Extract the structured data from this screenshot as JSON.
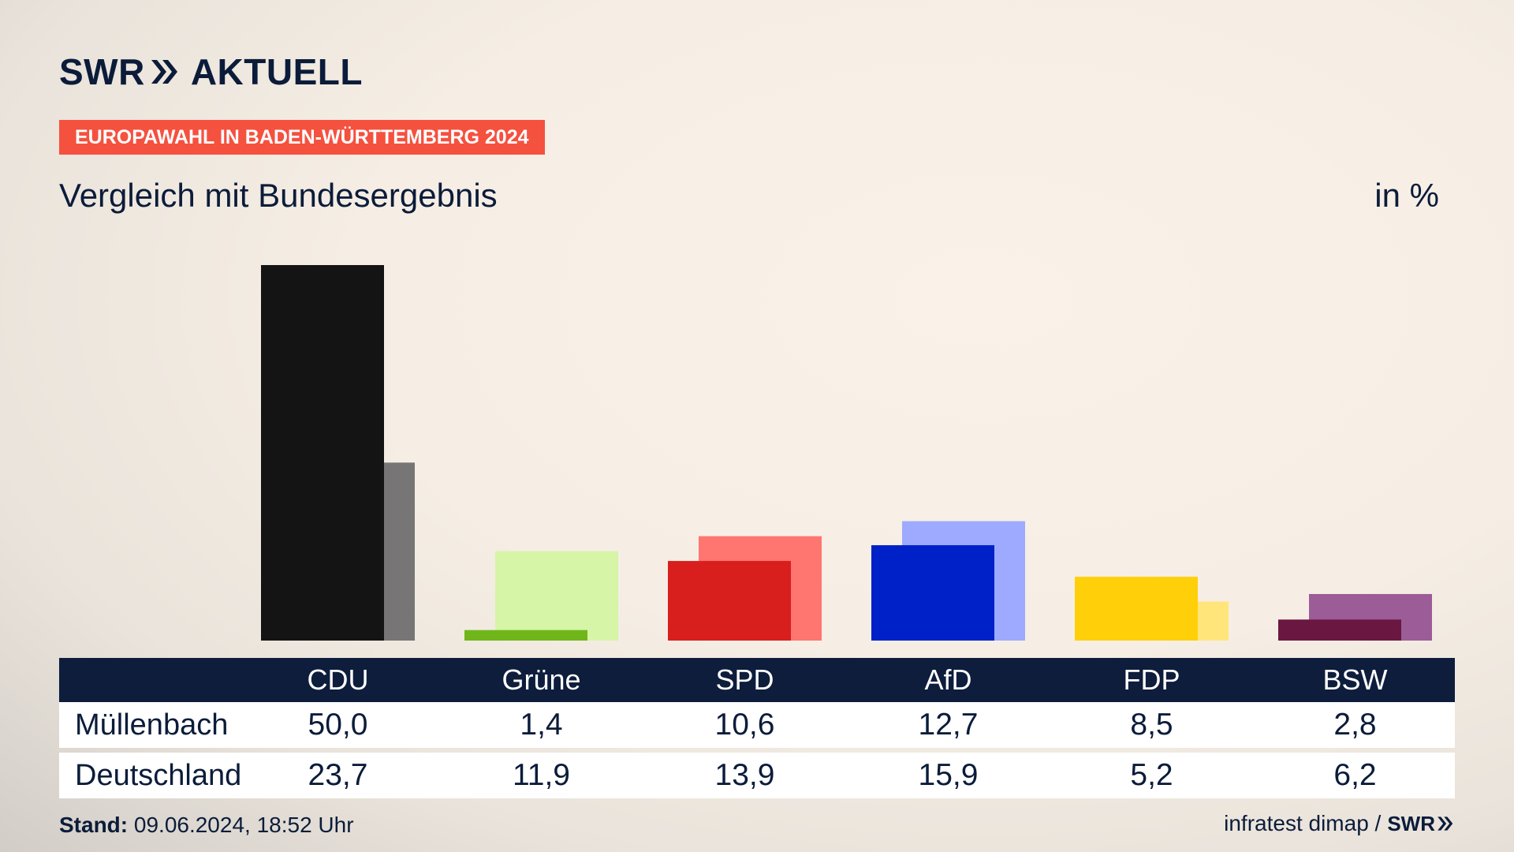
{
  "brand": {
    "logo_left": "SWR",
    "logo_right": "AKTUELL",
    "small_logo": "SWR"
  },
  "header": {
    "badge": "EUROPAWAHL IN BADEN-WÜRTTEMBERG 2024",
    "subtitle": "Vergleich mit Bundesergebnis",
    "unit": "in %"
  },
  "footer": {
    "stand_label": "Stand:",
    "stand_value": "09.06.2024, 18:52 Uhr",
    "source": "infratest dimap /"
  },
  "colors": {
    "CDU": [
      "#141414",
      "#777575"
    ],
    "Grüne": [
      "#70b61a",
      "#d6f5a7"
    ],
    "SPD": [
      "#d91e1e",
      "#ff7570"
    ],
    "AfD": [
      "#0020c8",
      "#9eaaff"
    ],
    "FDP": [
      "#ffd00a",
      "#ffe57a"
    ],
    "BSW": [
      "#6a1841",
      "#9c5c98"
    ]
  },
  "chart_data": {
    "type": "bar",
    "categories": [
      "CDU",
      "Grüne",
      "SPD",
      "AfD",
      "FDP",
      "BSW"
    ],
    "series": [
      {
        "name": "Müllenbach",
        "values": [
          50.0,
          1.4,
          10.6,
          12.7,
          8.5,
          2.8
        ]
      },
      {
        "name": "Deutschland",
        "values": [
          23.7,
          11.9,
          13.9,
          15.9,
          5.2,
          6.2
        ]
      }
    ],
    "value_labels": {
      "Müllenbach": [
        "50,0",
        "1,4",
        "10,6",
        "12,7",
        "8,5",
        "2,8"
      ],
      "Deutschland": [
        "23,7",
        "11,9",
        "13,9",
        "15,9",
        "5,2",
        "6,2"
      ]
    },
    "ylim": [
      0,
      50
    ],
    "grid": false
  }
}
